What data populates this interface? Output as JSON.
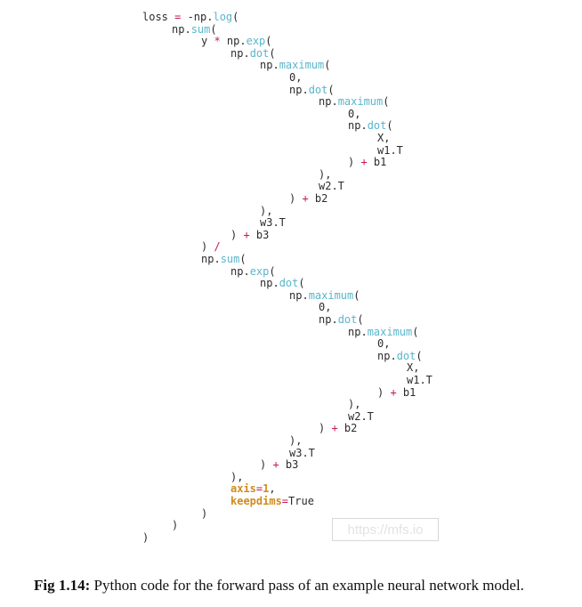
{
  "code_lines": [
    [
      {
        "t": "loss "
      },
      {
        "t": "=",
        "c": "op"
      },
      {
        "t": " -np."
      },
      {
        "t": "log",
        "c": "fn"
      },
      {
        "t": "("
      }
    ],
    [
      {
        "t": "np."
      },
      {
        "t": "sum",
        "c": "fn"
      },
      {
        "t": "("
      }
    ],
    [
      {
        "t": "y "
      },
      {
        "t": "*",
        "c": "op"
      },
      {
        "t": " np."
      },
      {
        "t": "exp",
        "c": "fn"
      },
      {
        "t": "("
      }
    ],
    [
      {
        "t": "np."
      },
      {
        "t": "dot",
        "c": "fn"
      },
      {
        "t": "("
      }
    ],
    [
      {
        "t": "np."
      },
      {
        "t": "maximum",
        "c": "fn"
      },
      {
        "t": "("
      }
    ],
    [
      {
        "t": "0,"
      }
    ],
    [
      {
        "t": "np."
      },
      {
        "t": "dot",
        "c": "fn"
      },
      {
        "t": "("
      }
    ],
    [
      {
        "t": "np."
      },
      {
        "t": "maximum",
        "c": "fn"
      },
      {
        "t": "("
      }
    ],
    [
      {
        "t": "0,"
      }
    ],
    [
      {
        "t": "np."
      },
      {
        "t": "dot",
        "c": "fn"
      },
      {
        "t": "("
      }
    ],
    [
      {
        "t": "X,"
      }
    ],
    [
      {
        "t": "w1.T"
      }
    ],
    [
      {
        "t": ") "
      },
      {
        "t": "+",
        "c": "op"
      },
      {
        "t": " b1"
      }
    ],
    [
      {
        "t": "),"
      }
    ],
    [
      {
        "t": "w2.T"
      }
    ],
    [
      {
        "t": ") "
      },
      {
        "t": "+",
        "c": "op"
      },
      {
        "t": " b2"
      }
    ],
    [
      {
        "t": "),"
      }
    ],
    [
      {
        "t": "w3.T"
      }
    ],
    [
      {
        "t": ") "
      },
      {
        "t": "+",
        "c": "op"
      },
      {
        "t": " b3"
      }
    ],
    [
      {
        "t": ") "
      },
      {
        "t": "/",
        "c": "op"
      }
    ],
    [
      {
        "t": "np."
      },
      {
        "t": "sum",
        "c": "fn"
      },
      {
        "t": "("
      }
    ],
    [
      {
        "t": "np."
      },
      {
        "t": "exp",
        "c": "fn"
      },
      {
        "t": "("
      }
    ],
    [
      {
        "t": "np."
      },
      {
        "t": "dot",
        "c": "fn"
      },
      {
        "t": "("
      }
    ],
    [
      {
        "t": "np."
      },
      {
        "t": "maximum",
        "c": "fn"
      },
      {
        "t": "("
      }
    ],
    [
      {
        "t": "0,"
      }
    ],
    [
      {
        "t": "np."
      },
      {
        "t": "dot",
        "c": "fn"
      },
      {
        "t": "("
      }
    ],
    [
      {
        "t": "np."
      },
      {
        "t": "maximum",
        "c": "fn"
      },
      {
        "t": "("
      }
    ],
    [
      {
        "t": "0,"
      }
    ],
    [
      {
        "t": "np."
      },
      {
        "t": "dot",
        "c": "fn"
      },
      {
        "t": "("
      }
    ],
    [
      {
        "t": "X,"
      }
    ],
    [
      {
        "t": "w1.T"
      }
    ],
    [
      {
        "t": ") "
      },
      {
        "t": "+",
        "c": "op"
      },
      {
        "t": " b1"
      }
    ],
    [
      {
        "t": "),"
      }
    ],
    [
      {
        "t": "w2.T"
      }
    ],
    [
      {
        "t": ") "
      },
      {
        "t": "+",
        "c": "op"
      },
      {
        "t": " b2"
      }
    ],
    [
      {
        "t": "),"
      }
    ],
    [
      {
        "t": "w3.T"
      }
    ],
    [
      {
        "t": ") "
      },
      {
        "t": "+",
        "c": "op"
      },
      {
        "t": " b3"
      }
    ],
    [
      {
        "t": "),"
      }
    ],
    [
      {
        "t": "axis",
        "c": "kw"
      },
      {
        "t": "=",
        "c": "op"
      },
      {
        "t": "1",
        "c": "kw"
      },
      {
        "t": ","
      }
    ],
    [
      {
        "t": "keepdims",
        "c": "kw"
      },
      {
        "t": "=",
        "c": "op"
      },
      {
        "t": "True"
      }
    ],
    [
      {
        "t": ")"
      }
    ],
    [
      {
        "t": ")"
      }
    ],
    [
      {
        "t": ")"
      }
    ]
  ],
  "watermark": "https://mfs.io",
  "caption": {
    "label": "Fig 1.14:",
    "text": " Python code for the forward pass of an example neural network model."
  },
  "colors": {
    "function": "#58b6cc",
    "operator": "#c2185b",
    "keyword": "#d08a1c",
    "text": "#2b2b2b"
  }
}
